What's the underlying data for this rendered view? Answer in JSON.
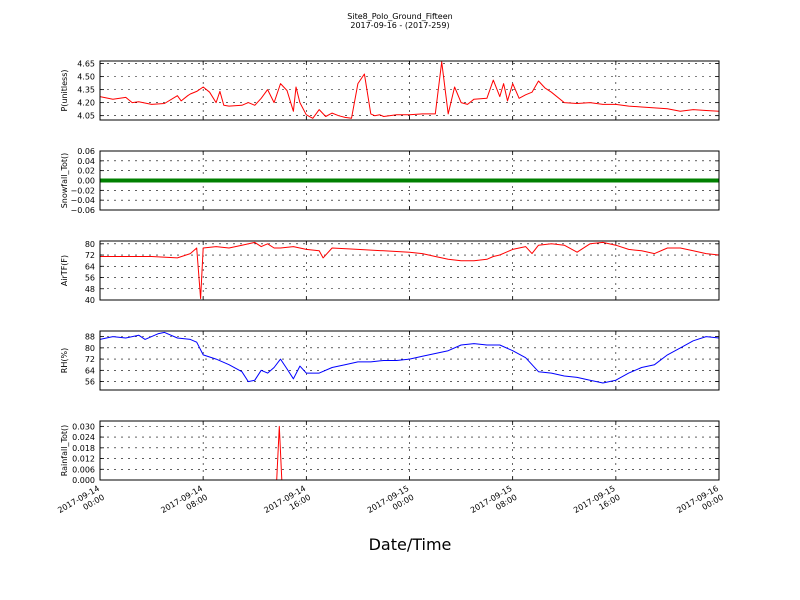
{
  "chart_data": {
    "title": "Site8_Polo_Ground_Fifteen",
    "subtitle": "2017-09-16 - (2017-259)",
    "xlabel": "Date/Time",
    "x_ticks": [
      "2017-09-14 00:00",
      "2017-09-14 08:00",
      "2017-09-14 16:00",
      "2017-09-15 00:00",
      "2017-09-15 08:00",
      "2017-09-15 16:00",
      "2017-09-16 00:00"
    ],
    "x_range_hours": [
      0,
      48
    ],
    "grid": true,
    "panels": [
      {
        "type": "line",
        "ylabel": "P(unitless)",
        "color": "#ff0000",
        "ylim": [
          4.0,
          4.68
        ],
        "yticks": [
          "4.05",
          "4.20",
          "4.35",
          "4.50",
          "4.65"
        ],
        "ytick_values": [
          4.05,
          4.2,
          4.35,
          4.5,
          4.65
        ],
        "x_hours": [
          0,
          1,
          2,
          2.5,
          3,
          4,
          5,
          6,
          6.3,
          6.8,
          7,
          7.5,
          8,
          8.5,
          9,
          9.3,
          9.6,
          10,
          11,
          11.5,
          12,
          12.5,
          13,
          13.5,
          14,
          14.5,
          15,
          15.2,
          15.5,
          16,
          16.5,
          17,
          17.5,
          18,
          18.5,
          19,
          19.5,
          20,
          20.5,
          21,
          21.3,
          21.7,
          22,
          23,
          24,
          25,
          26,
          26.5,
          27,
          27.5,
          28,
          28.5,
          29,
          30,
          30.5,
          31,
          31.3,
          31.6,
          32,
          32.5,
          33,
          33.5,
          34,
          34.5,
          35,
          36,
          37,
          38,
          39,
          40,
          41,
          42,
          43,
          44,
          45,
          46,
          47,
          48
        ],
        "values": [
          4.27,
          4.24,
          4.26,
          4.2,
          4.21,
          4.18,
          4.19,
          4.28,
          4.22,
          4.28,
          4.3,
          4.33,
          4.38,
          4.32,
          4.2,
          4.33,
          4.17,
          4.16,
          4.17,
          4.2,
          4.17,
          4.25,
          4.35,
          4.2,
          4.42,
          4.34,
          4.1,
          4.38,
          4.2,
          4.06,
          4.02,
          4.12,
          4.04,
          4.08,
          4.05,
          4.03,
          4.02,
          4.42,
          4.53,
          4.07,
          4.05,
          4.06,
          4.04,
          4.06,
          4.06,
          4.07,
          4.07,
          4.67,
          4.07,
          4.38,
          4.2,
          4.18,
          4.24,
          4.25,
          4.46,
          4.27,
          4.42,
          4.22,
          4.42,
          4.25,
          4.29,
          4.32,
          4.45,
          4.37,
          4.32,
          4.2,
          4.19,
          4.2,
          4.18,
          4.18,
          4.16,
          4.15,
          4.14,
          4.13,
          4.1,
          4.12,
          4.11,
          4.1
        ]
      },
      {
        "type": "line",
        "ylabel": "Snowfall_Tot()",
        "color": "#008000",
        "ylim": [
          -0.06,
          0.06
        ],
        "yticks": [
          "−0.06",
          "−0.04",
          "−0.02",
          "0.00",
          "0.02",
          "0.04",
          "0.06"
        ],
        "ytick_values": [
          -0.06,
          -0.04,
          -0.02,
          0.0,
          0.02,
          0.04,
          0.06
        ],
        "x_hours": [
          0,
          48
        ],
        "values": [
          0.0,
          0.0
        ]
      },
      {
        "type": "line",
        "ylabel": "AirTF(F)",
        "color": "#ff0000",
        "ylim": [
          40,
          82
        ],
        "yticks": [
          "40",
          "48",
          "56",
          "64",
          "72",
          "80"
        ],
        "ytick_values": [
          40,
          48,
          56,
          64,
          72,
          80
        ],
        "x_hours": [
          0,
          2,
          4,
          6,
          7,
          7.5,
          7.8,
          8,
          9,
          10,
          11,
          12,
          12.5,
          13,
          13.5,
          14,
          15,
          16,
          17,
          17.3,
          18,
          20,
          22,
          24,
          25,
          26,
          27,
          28,
          29,
          30,
          30.5,
          31,
          32,
          33,
          33.5,
          34,
          35,
          36,
          37,
          38,
          39,
          40,
          41,
          42,
          43,
          44,
          45,
          46,
          47,
          48
        ],
        "values": [
          71,
          71,
          71,
          70,
          73,
          77,
          41,
          77,
          78,
          77,
          79,
          81,
          78,
          80,
          77,
          77,
          78,
          76,
          75,
          70,
          77,
          76,
          75,
          74,
          73,
          71,
          69,
          68,
          68,
          69,
          71,
          72,
          76,
          78,
          73,
          79,
          80,
          79,
          74,
          80,
          81,
          79,
          76,
          75,
          73,
          77,
          77,
          75,
          73,
          72
        ]
      },
      {
        "type": "line",
        "ylabel": "RH(%)",
        "color": "#0000ff",
        "ylim": [
          50,
          92
        ],
        "yticks": [
          "56",
          "64",
          "72",
          "80",
          "88"
        ],
        "ytick_values": [
          56,
          64,
          72,
          80,
          88
        ],
        "x_hours": [
          0,
          1,
          2,
          3,
          3.5,
          4,
          4.5,
          5,
          6,
          7,
          7.5,
          8,
          9,
          10,
          11,
          11.5,
          12,
          12.5,
          13,
          13.5,
          14,
          14.5,
          15,
          15.5,
          16,
          17,
          18,
          19,
          20,
          21,
          22,
          23,
          24,
          25,
          26,
          27,
          28,
          29,
          30,
          31,
          32,
          33,
          34,
          35,
          36,
          37,
          38,
          39,
          40,
          41,
          42,
          43,
          44,
          45,
          46,
          47,
          48
        ],
        "values": [
          86,
          88,
          87,
          89,
          86,
          88,
          90,
          91,
          87,
          86,
          84,
          75,
          72,
          68,
          63,
          56,
          57,
          64,
          62,
          66,
          72,
          65,
          58,
          67,
          62,
          62,
          66,
          68,
          70,
          70,
          71,
          71,
          72,
          74,
          76,
          78,
          82,
          83,
          82,
          82,
          78,
          73,
          63,
          62,
          60,
          59,
          57,
          55,
          57,
          62,
          66,
          68,
          75,
          80,
          85,
          88,
          87
        ]
      },
      {
        "type": "line",
        "ylabel": "Rainfall_Tot()",
        "color": "#ff0000",
        "ylim": [
          0.0,
          0.033
        ],
        "yticks": [
          "0.000",
          "0.006",
          "0.012",
          "0.018",
          "0.024",
          "0.030"
        ],
        "ytick_values": [
          0.0,
          0.006,
          0.012,
          0.018,
          0.024,
          0.03
        ],
        "x_hours": [
          0,
          13.7,
          13.9,
          14.1,
          48
        ],
        "values": [
          0.0,
          0.0,
          0.03,
          0.0,
          0.0
        ]
      }
    ]
  }
}
